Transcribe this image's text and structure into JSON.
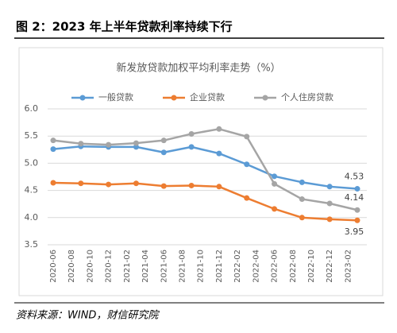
{
  "header": {
    "title": "图 2：2023 年上半年贷款利率持续下行"
  },
  "chart_data": {
    "type": "line",
    "title": "新发放贷款加权平均利率走势（%）",
    "categories": [
      "2020-06",
      null,
      "2020-08",
      null,
      "2020-10",
      null,
      "2020-12",
      null,
      "2021-02",
      null,
      "2021-04",
      null,
      "2021-06",
      null,
      "2021-08",
      null,
      "2021-10",
      null,
      "2021-12",
      null,
      "2022-02",
      null,
      "2022-04",
      null,
      "2022-06",
      null,
      "2022-08",
      null,
      "2022-10",
      null,
      "2022-12",
      null,
      "2023-02",
      null
    ],
    "series": [
      {
        "name": "一般贷款",
        "color": "#5b9bd5",
        "label_last": true,
        "values": [
          5.26,
          null,
          null,
          5.31,
          null,
          null,
          5.3,
          null,
          null,
          5.3,
          null,
          null,
          5.2,
          null,
          null,
          5.3,
          null,
          null,
          5.18,
          null,
          null,
          4.98,
          null,
          null,
          4.76,
          null,
          null,
          4.65,
          null,
          null,
          4.57,
          null,
          null,
          4.53
        ]
      },
      {
        "name": "企业贷款",
        "color": "#ed7d31",
        "label_last": true,
        "values": [
          4.64,
          null,
          null,
          4.63,
          null,
          null,
          4.61,
          null,
          null,
          4.63,
          null,
          null,
          4.58,
          null,
          null,
          4.59,
          null,
          null,
          4.57,
          null,
          null,
          4.36,
          null,
          null,
          4.16,
          null,
          null,
          4.0,
          null,
          null,
          3.97,
          null,
          null,
          3.95
        ]
      },
      {
        "name": "个人住房贷款",
        "color": "#a5a5a5",
        "label_last": true,
        "values": [
          5.42,
          null,
          null,
          5.36,
          null,
          null,
          5.34,
          null,
          null,
          5.37,
          null,
          null,
          5.42,
          null,
          null,
          5.54,
          null,
          null,
          5.63,
          null,
          null,
          5.49,
          null,
          null,
          4.62,
          null,
          null,
          4.34,
          null,
          null,
          4.26,
          null,
          null,
          4.14
        ]
      }
    ],
    "span_gaps": true,
    "ylim": [
      3.5,
      6.0
    ],
    "yticks": [
      {
        "value": 3.5,
        "label": "3.5"
      },
      {
        "value": 4.0,
        "label": "4.0"
      },
      {
        "value": 4.5,
        "label": "4.5"
      },
      {
        "value": 5.0,
        "label": "5.0"
      },
      {
        "value": 5.5,
        "label": "5.5"
      },
      {
        "value": 6.0,
        "label": "6.0"
      }
    ],
    "grid": true,
    "legend": "top"
  },
  "footer": {
    "source": "资料来源：WIND，财信研究院"
  }
}
